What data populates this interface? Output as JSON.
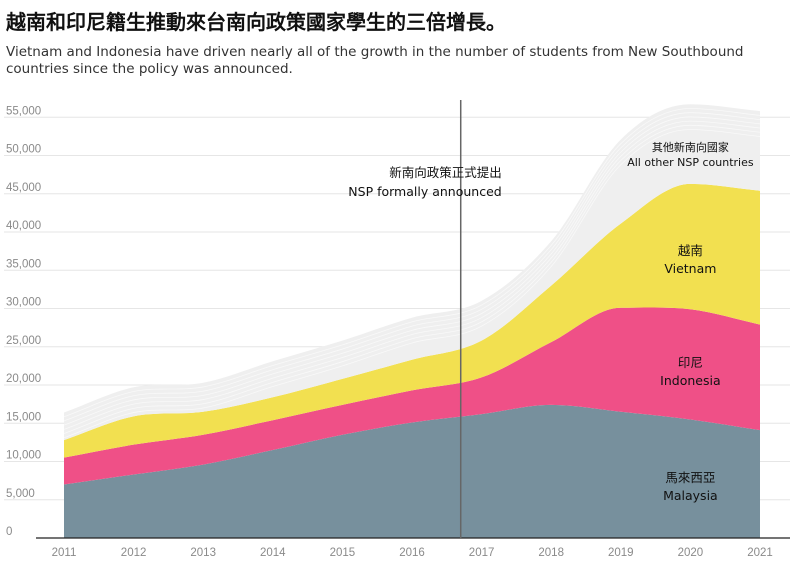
{
  "title": "越南和印尼籍生推動來台南向政策國家學生的三倍增長。",
  "subtitle": "Vietnam and Indonesia have driven nearly all of the growth in the number of students from New Southbound countries since the policy was announced.",
  "chart_data": {
    "type": "area",
    "stacked": true,
    "x": [
      2011,
      2012,
      2013,
      2014,
      2015,
      2016,
      2017,
      2018,
      2019,
      2020,
      2021
    ],
    "xticks": [
      "2011",
      "2012",
      "2013",
      "2014",
      "2015",
      "2016",
      "2017",
      "2018",
      "2019",
      "2020",
      "2021"
    ],
    "ylim": [
      0,
      57000
    ],
    "yticks": [
      "0",
      "5,000",
      "10,000",
      "15,000",
      "20,000",
      "25,000",
      "30,000",
      "35,000",
      "40,000",
      "45,000",
      "50,000",
      "55,000"
    ],
    "grid": true,
    "series": [
      {
        "name": "馬來西亞",
        "name_en": "Malaysia",
        "color": "#77909d",
        "values": [
          7000,
          8300,
          9600,
          11500,
          13500,
          15100,
          16200,
          17400,
          16500,
          15500,
          14100
        ]
      },
      {
        "name": "印尼",
        "name_en": "Indonesia",
        "color": "#ef5087",
        "values": [
          3500,
          3900,
          3900,
          3900,
          3900,
          4200,
          4800,
          8200,
          13600,
          14400,
          13800
        ]
      },
      {
        "name": "越南",
        "name_en": "Vietnam",
        "color": "#f2e050",
        "values": [
          2300,
          3700,
          3000,
          3000,
          3400,
          4000,
          4800,
          7400,
          11000,
          16400,
          17500
        ]
      },
      {
        "name": "其他新南向國家",
        "name_en": "All other NSP countries",
        "color": "#efefef",
        "values": [
          3600,
          3800,
          3800,
          4700,
          5000,
          5500,
          5200,
          5800,
          11000,
          10400,
          10400
        ]
      }
    ],
    "annotation": {
      "x": 2016.7,
      "label": "新南向政策正式提出",
      "label_en": "NSP formally announced"
    }
  }
}
